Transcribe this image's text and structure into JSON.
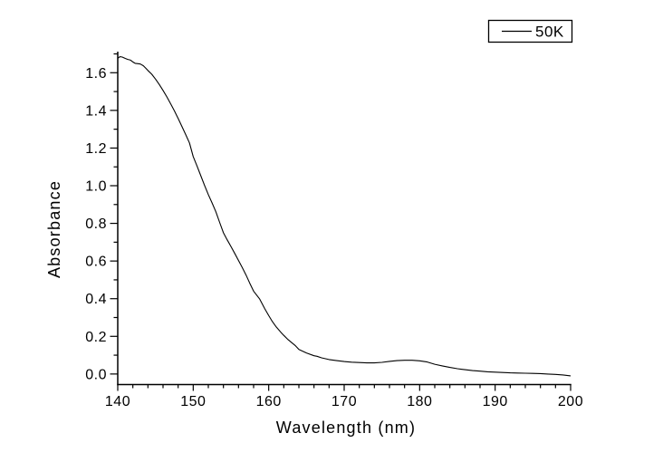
{
  "figure": {
    "background": "#ffffff",
    "foreground": "#000000"
  },
  "chart_data": {
    "type": "line",
    "title": "",
    "xlabel": "Wavelength (nm)",
    "ylabel": "Absorbance",
    "xlim": [
      140,
      200
    ],
    "ylim": [
      -0.056,
      1.712
    ],
    "grid": false,
    "legend_position": "top-right",
    "x_major_ticks": [
      140,
      150,
      160,
      170,
      180,
      190,
      200
    ],
    "x_tick_labels": [
      "140",
      "150",
      "160",
      "170",
      "180",
      "190",
      "200"
    ],
    "x_minor_step": 2,
    "y_major_ticks": [
      0.0,
      0.2,
      0.4,
      0.6,
      0.8,
      1.0,
      1.2,
      1.4,
      1.6
    ],
    "y_tick_labels": [
      "0.0",
      "0.2",
      "0.4",
      "0.6",
      "0.8",
      "1.0",
      "1.2",
      "1.4",
      "1.6"
    ],
    "y_minor_step": 0.1,
    "series": [
      {
        "name": "50K",
        "color": "#000000",
        "points": [
          [
            140.0,
            1.677
          ],
          [
            140.3,
            1.685
          ],
          [
            140.6,
            1.683
          ],
          [
            141.0,
            1.676
          ],
          [
            141.3,
            1.671
          ],
          [
            141.7,
            1.667
          ],
          [
            142.0,
            1.657
          ],
          [
            142.3,
            1.65
          ],
          [
            142.7,
            1.648
          ],
          [
            143.0,
            1.646
          ],
          [
            143.4,
            1.637
          ],
          [
            143.7,
            1.625
          ],
          [
            144.0,
            1.612
          ],
          [
            144.5,
            1.592
          ],
          [
            145.0,
            1.566
          ],
          [
            145.5,
            1.538
          ],
          [
            146.0,
            1.506
          ],
          [
            146.5,
            1.472
          ],
          [
            147.0,
            1.436
          ],
          [
            147.5,
            1.398
          ],
          [
            148.0,
            1.357
          ],
          [
            148.5,
            1.315
          ],
          [
            149.0,
            1.272
          ],
          [
            149.5,
            1.227
          ],
          [
            150.0,
            1.155
          ],
          [
            150.5,
            1.105
          ],
          [
            151.0,
            1.053
          ],
          [
            151.5,
            1.002
          ],
          [
            152.0,
            0.953
          ],
          [
            152.5,
            0.908
          ],
          [
            153.0,
            0.862
          ],
          [
            153.5,
            0.805
          ],
          [
            154.0,
            0.75
          ],
          [
            154.5,
            0.713
          ],
          [
            155.0,
            0.677
          ],
          [
            155.5,
            0.64
          ],
          [
            156.0,
            0.603
          ],
          [
            156.5,
            0.565
          ],
          [
            157.0,
            0.525
          ],
          [
            157.5,
            0.482
          ],
          [
            158.0,
            0.44
          ],
          [
            158.8,
            0.398
          ],
          [
            159.5,
            0.345
          ],
          [
            160.0,
            0.31
          ],
          [
            160.5,
            0.278
          ],
          [
            161.0,
            0.25
          ],
          [
            161.6,
            0.222
          ],
          [
            162.0,
            0.205
          ],
          [
            162.5,
            0.185
          ],
          [
            163.0,
            0.168
          ],
          [
            163.5,
            0.152
          ],
          [
            164.0,
            0.13
          ],
          [
            165.0,
            0.112
          ],
          [
            166.0,
            0.097
          ],
          [
            166.4,
            0.094
          ],
          [
            167.0,
            0.086
          ],
          [
            168.0,
            0.077
          ],
          [
            169.0,
            0.071
          ],
          [
            170.0,
            0.066
          ],
          [
            171.0,
            0.063
          ],
          [
            172.0,
            0.061
          ],
          [
            173.0,
            0.059
          ],
          [
            174.0,
            0.059
          ],
          [
            175.0,
            0.062
          ],
          [
            176.0,
            0.067
          ],
          [
            177.0,
            0.071
          ],
          [
            178.0,
            0.073
          ],
          [
            179.0,
            0.073
          ],
          [
            180.0,
            0.07
          ],
          [
            181.0,
            0.064
          ],
          [
            182.0,
            0.052
          ],
          [
            183.0,
            0.043
          ],
          [
            184.0,
            0.035
          ],
          [
            185.0,
            0.028
          ],
          [
            186.0,
            0.023
          ],
          [
            187.0,
            0.018
          ],
          [
            188.0,
            0.015
          ],
          [
            189.0,
            0.012
          ],
          [
            190.0,
            0.01
          ],
          [
            191.0,
            0.008
          ],
          [
            192.0,
            0.006
          ],
          [
            193.0,
            0.005
          ],
          [
            194.0,
            0.004
          ],
          [
            195.0,
            0.003
          ],
          [
            196.0,
            0.002
          ],
          [
            197.0,
            0.0
          ],
          [
            198.0,
            -0.002
          ],
          [
            199.0,
            -0.005
          ],
          [
            200.0,
            -0.01
          ]
        ]
      }
    ]
  }
}
